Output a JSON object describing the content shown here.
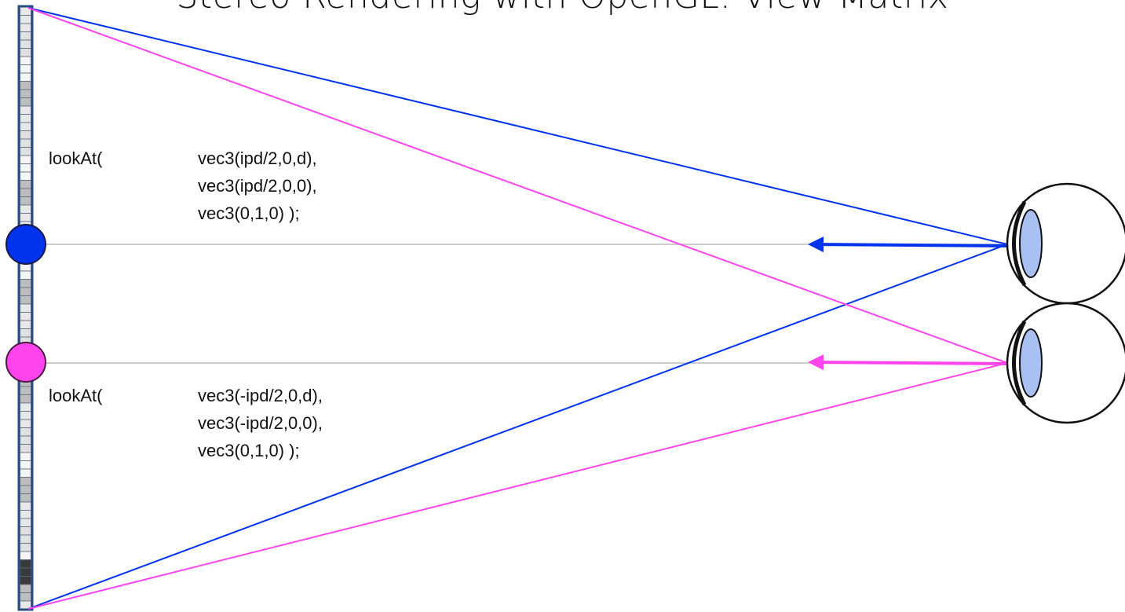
{
  "title": "Stereo Rendering with OpenGL: View Matrix",
  "right_eye_call": {
    "fn": "lookAt(",
    "args": [
      "vec3(ipd/2,0,d),",
      "vec3(ipd/2,0,0),",
      "vec3(0,1,0) );"
    ]
  },
  "left_eye_call": {
    "fn": "lookAt(",
    "args": [
      "vec3(-ipd/2,0,d),",
      "vec3(-ipd/2,0,0),",
      "vec3(0,1,0) );"
    ]
  },
  "colors": {
    "right_eye": "#0033ee",
    "left_eye": "#ff44ee",
    "axis_line": "#bbbbbb",
    "screen_border": "#2b4a80",
    "iris": "#a9c1f2"
  },
  "icons": [
    "eye-icon",
    "eye-icon"
  ]
}
